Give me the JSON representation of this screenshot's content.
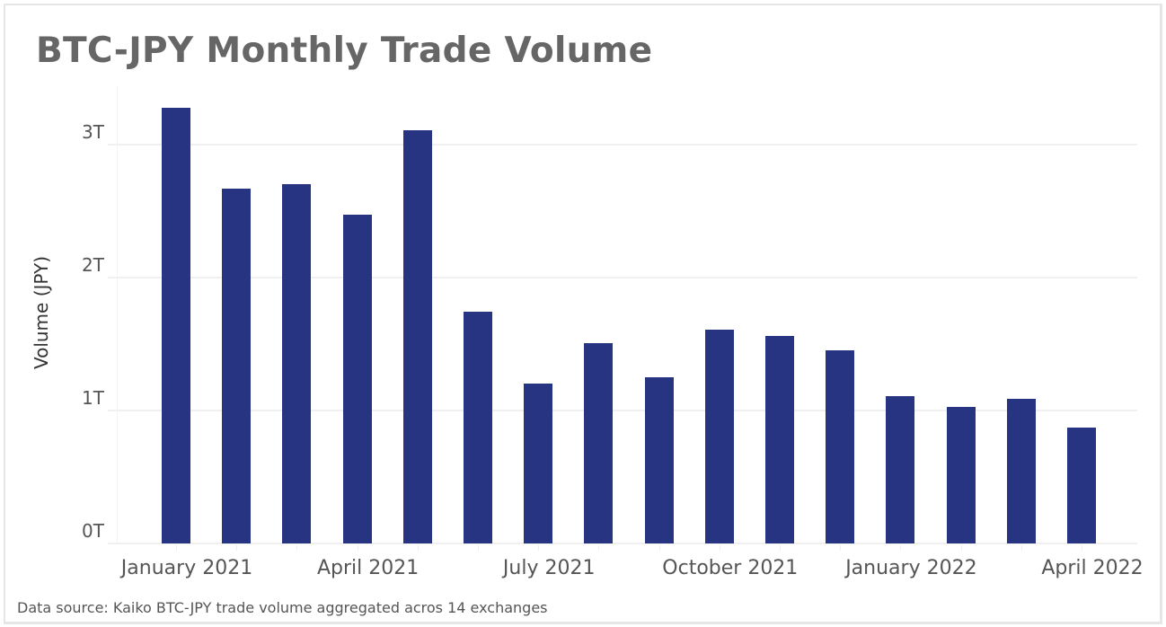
{
  "title": "BTC-JPY Monthly Trade Volume",
  "source_note": "Data source: Kaiko BTC-JPY trade volume aggregated acros 14 exchanges",
  "colors": {
    "bar": "#273482",
    "title": "#666666",
    "grid": "#f0f0f0"
  },
  "y_axis": {
    "label": "Volume (JPY)",
    "ticks": [
      "0T",
      "1T",
      "2T",
      "3T"
    ]
  },
  "x_axis": {
    "ticks": [
      "January 2021",
      "April 2021",
      "July 2021",
      "October 2021",
      "January 2022",
      "April 2022"
    ]
  },
  "chart_data": {
    "type": "bar",
    "title": "BTC-JPY Monthly Trade Volume",
    "xlabel": "",
    "ylabel": "Volume (JPY)",
    "ylim": [
      0,
      3.3
    ],
    "y_unit": "trillion JPY",
    "grid": true,
    "legend": null,
    "categories": [
      "Jan 2021",
      "Feb 2021",
      "Mar 2021",
      "Apr 2021",
      "May 2021",
      "Jun 2021",
      "Jul 2021",
      "Aug 2021",
      "Sep 2021",
      "Oct 2021",
      "Nov 2021",
      "Dec 2021",
      "Jan 2022",
      "Feb 2022",
      "Mar 2022",
      "Apr 2022"
    ],
    "values": [
      3.28,
      2.67,
      2.7,
      2.47,
      3.11,
      1.74,
      1.2,
      1.51,
      1.25,
      1.61,
      1.56,
      1.45,
      1.11,
      1.03,
      1.09,
      0.87
    ],
    "tick_labels_y": [
      "0T",
      "1T",
      "2T",
      "3T"
    ],
    "tick_labels_x": [
      "January 2021",
      "April 2021",
      "July 2021",
      "October 2021",
      "January 2022",
      "April 2022"
    ],
    "annotations": [
      "Data source: Kaiko BTC-JPY trade volume aggregated acros 14 exchanges"
    ]
  }
}
